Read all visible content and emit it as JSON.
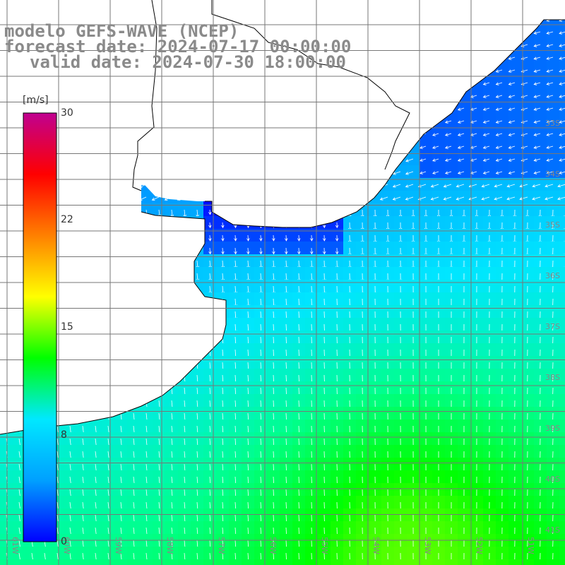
{
  "title": {
    "line1": "modelo GEFS-WAVE (NCEP)",
    "line2": "forecast date: 2024-07-17 00:00:00",
    "line3": "valid date: 2024-07-30 18:00:00"
  },
  "colorbar": {
    "unit": "[m/s]",
    "min": 0,
    "max": 30,
    "ticks": [
      "30",
      "22",
      "15",
      "8",
      "0"
    ],
    "tick_values": [
      30,
      22,
      15,
      8,
      0
    ],
    "colors": [
      "#0000ff",
      "#00a0ff",
      "#00e8ff",
      "#00ff00",
      "#ffff00",
      "#ff8000",
      "#ff0000",
      "#c00090"
    ]
  },
  "map": {
    "lon_labels": [
      "61W",
      "60W",
      "59W",
      "58W",
      "57W",
      "56W",
      "55W",
      "54W",
      "53W",
      "52W",
      "51W"
    ],
    "lat_labels": [
      "33S",
      "34S",
      "35S",
      "36S",
      "37S",
      "38S",
      "39S",
      "40S",
      "41S"
    ],
    "land_color": "#ffffff",
    "grid_color": "#777777",
    "arrow_color": "#ffffff"
  }
}
